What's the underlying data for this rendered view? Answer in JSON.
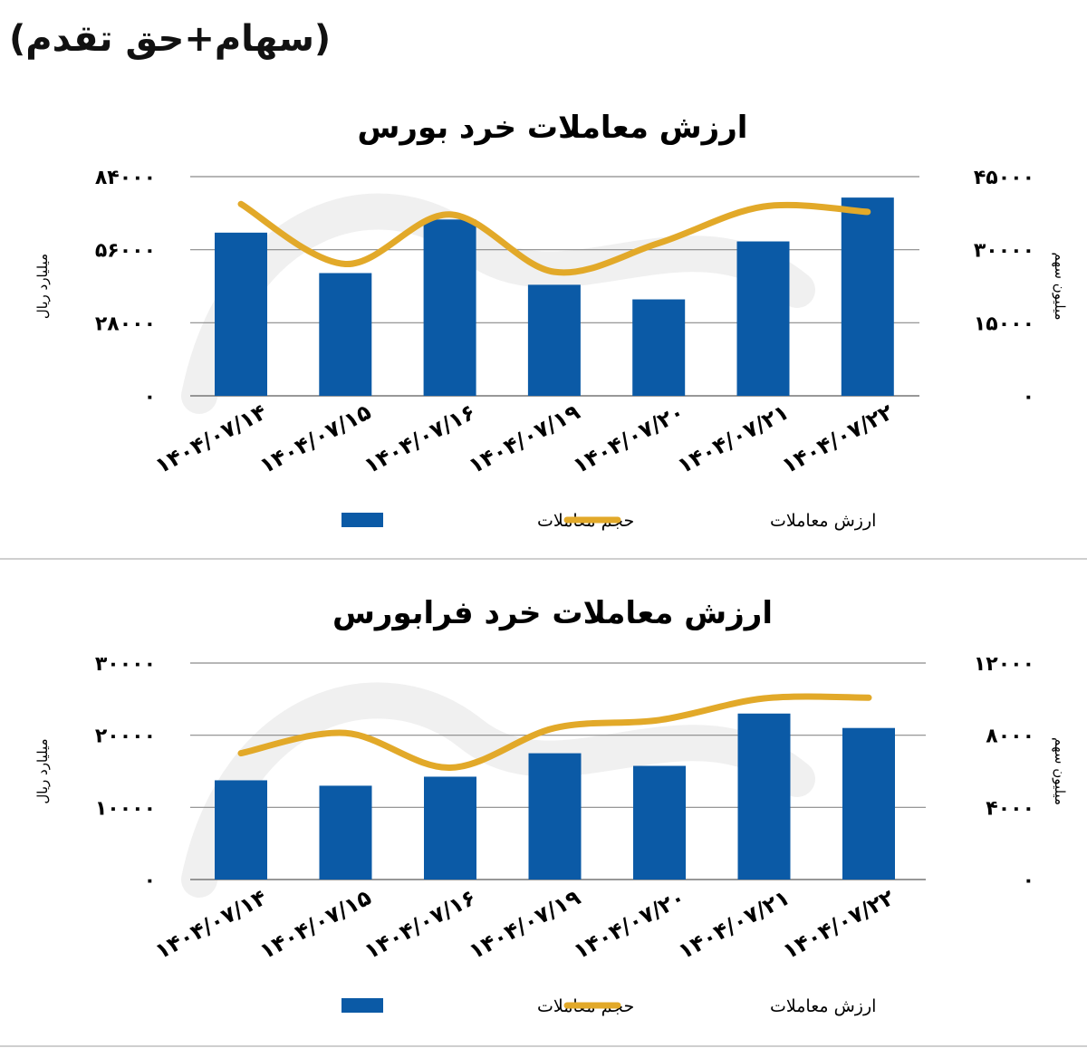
{
  "header": {
    "text": "(سهام+حق تقدم)"
  },
  "charts": [
    {
      "id": "bourse",
      "chart_data": {
        "type": "bar",
        "title": "ارزش معاملات خرد بورس",
        "categories": [
          "۱۴۰۴/۰۷/۱۴",
          "۱۴۰۴/۰۷/۱۵",
          "۱۴۰۴/۰۷/۱۶",
          "۱۴۰۴/۰۷/۱۹",
          "۱۴۰۴/۰۷/۲۰",
          "۱۴۰۴/۰۷/۲۱",
          "۱۴۰۴/۰۷/۲۲"
        ],
        "ylabel_left": "میلیارد ریال",
        "ylabel_right": "میلیون سهم",
        "left_ticks": [
          "۰",
          "۲۸۰۰۰",
          "۵۶۰۰۰",
          "۸۴۰۰۰"
        ],
        "right_ticks": [
          "۰",
          "۱۵۰۰۰",
          "۳۰۰۰۰",
          "۴۵۰۰۰"
        ],
        "left_range": [
          0,
          84000
        ],
        "right_range": [
          0,
          45000
        ],
        "legend_position": "bottom",
        "series": [
          {
            "name": "حجم معاملات",
            "type": "bar",
            "axis": "right",
            "color": "#0b5aa6",
            "values": [
              33500,
              25200,
              36200,
              22800,
              19800,
              31700,
              40700
            ]
          },
          {
            "name": "ارزش معاملات",
            "type": "line",
            "axis": "left",
            "color": "#e2a929",
            "values": [
              73500,
              50500,
              69500,
              47500,
              58500,
              72500,
              70500
            ]
          }
        ]
      }
    },
    {
      "id": "farabourse",
      "chart_data": {
        "type": "bar",
        "title": "ارزش معاملات خرد فرابورس",
        "categories": [
          "۱۴۰۴/۰۷/۱۴",
          "۱۴۰۴/۰۷/۱۵",
          "۱۴۰۴/۰۷/۱۶",
          "۱۴۰۴/۰۷/۱۹",
          "۱۴۰۴/۰۷/۲۰",
          "۱۴۰۴/۰۷/۲۱",
          "۱۴۰۴/۰۷/۲۲"
        ],
        "ylabel_left": "میلیارد ریال",
        "ylabel_right": "میلیون سهم",
        "left_ticks": [
          "۰",
          "۱۰۰۰۰",
          "۲۰۰۰۰",
          "۳۰۰۰۰"
        ],
        "right_ticks": [
          "۰",
          "۴۰۰۰",
          "۸۰۰۰",
          "۱۲۰۰۰"
        ],
        "left_range": [
          0,
          30000
        ],
        "right_range": [
          0,
          12000
        ],
        "legend_position": "bottom",
        "series": [
          {
            "name": "حجم معاملات",
            "type": "bar",
            "axis": "right",
            "color": "#0b5aa6",
            "values": [
              5500,
              5200,
              5700,
              7000,
              6300,
              9200,
              8400
            ]
          },
          {
            "name": "ارزش معاملات",
            "type": "line",
            "axis": "left",
            "color": "#e2a929",
            "values": [
              17500,
              20300,
              15500,
              21000,
              22100,
              25100,
              25200
            ]
          }
        ]
      }
    }
  ]
}
